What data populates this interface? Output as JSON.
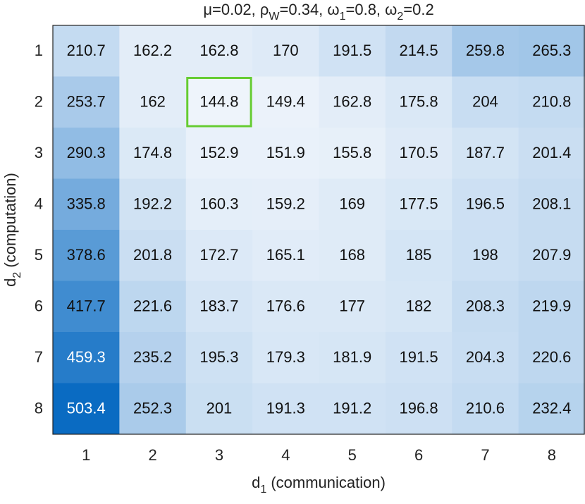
{
  "chart_data": {
    "type": "heatmap",
    "title": [
      "μ=0.02, ρ",
      "W",
      "=0.34, ω",
      "1",
      "=0.8, ω",
      "2",
      "=0.2"
    ],
    "x_label": [
      "d",
      "1",
      " (communication)"
    ],
    "y_label": [
      "d",
      "2",
      " (computation)"
    ],
    "xticks": [
      1,
      2,
      3,
      4,
      5,
      6,
      7,
      8
    ],
    "yticks": [
      1,
      2,
      3,
      4,
      5,
      6,
      7,
      8
    ],
    "values": [
      [
        210.7,
        162.2,
        162.8,
        170,
        191.5,
        214.5,
        259.8,
        265.3
      ],
      [
        253.7,
        162,
        144.8,
        149.4,
        162.8,
        175.8,
        204,
        210.8
      ],
      [
        290.3,
        174.8,
        152.9,
        151.9,
        155.8,
        170.5,
        187.7,
        201.4
      ],
      [
        335.8,
        192.2,
        160.3,
        159.2,
        169,
        177.5,
        196.5,
        208.1
      ],
      [
        378.6,
        201.8,
        172.7,
        165.1,
        168,
        185,
        198,
        207.9
      ],
      [
        417.7,
        221.6,
        183.7,
        176.6,
        177,
        182,
        208.3,
        219.9
      ],
      [
        459.3,
        235.2,
        195.3,
        179.3,
        181.9,
        191.5,
        204.3,
        220.6
      ],
      [
        503.4,
        252.3,
        201,
        191.3,
        191.2,
        196.8,
        210.6,
        232.4
      ]
    ],
    "clim": [
      144.8,
      503.4
    ],
    "colormap": [
      "#eef4fb",
      "#0a6bc2"
    ],
    "highlight": {
      "row": 1,
      "col": 2,
      "color": "#66cc33"
    }
  }
}
